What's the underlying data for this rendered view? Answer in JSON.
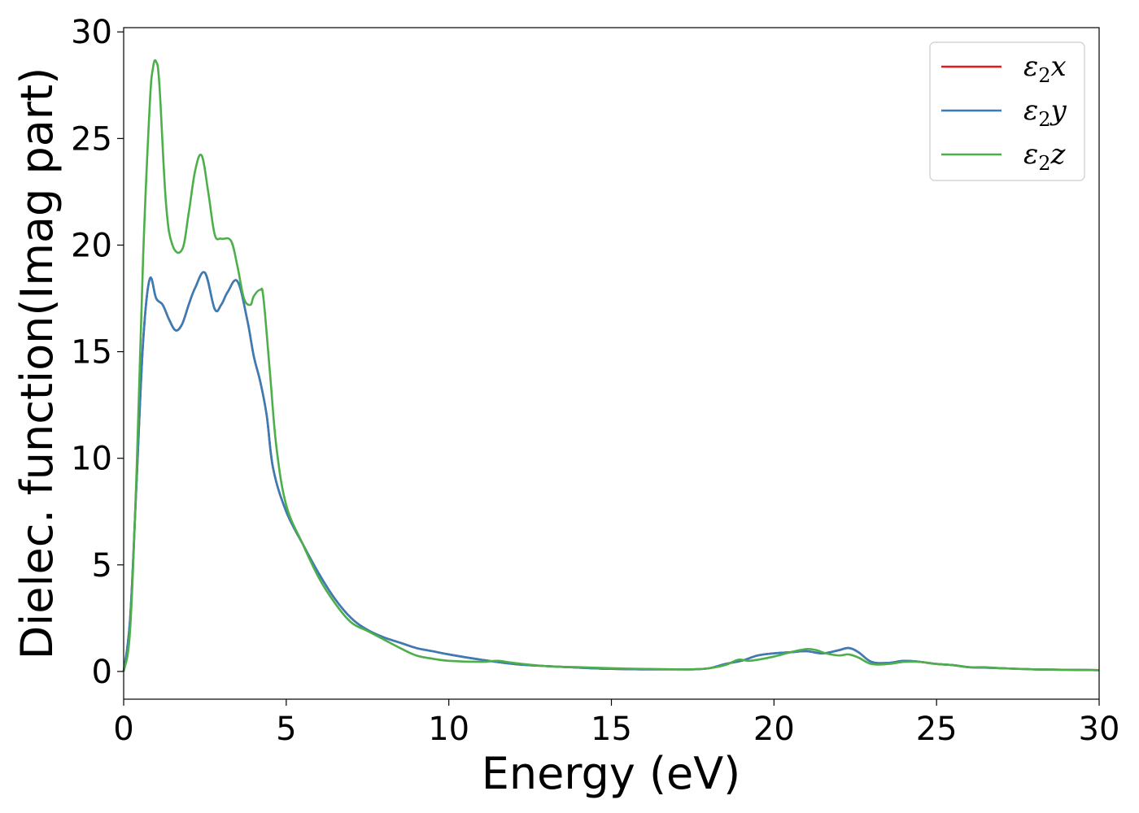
{
  "chart_data": {
    "type": "line",
    "xlabel": "Energy (eV)",
    "ylabel": "Dielec. function(Imag part)",
    "xlim": [
      0,
      30
    ],
    "ylim": [
      -1.3,
      30.2
    ],
    "xticks": [
      0,
      5,
      10,
      15,
      20,
      25,
      30
    ],
    "yticks": [
      0,
      5,
      10,
      15,
      20,
      25,
      30
    ],
    "grid": false,
    "legend_position": "top-right",
    "series": [
      {
        "name": "ε₂x",
        "label_base": "ε",
        "label_sub": "2",
        "label_var": "x",
        "color": "#e41a1c",
        "x": [
          0,
          0.2,
          0.4,
          0.6,
          0.8,
          1.0,
          1.2,
          1.4,
          1.6,
          1.8,
          2.0,
          2.2,
          2.5,
          2.8,
          3.0,
          3.2,
          3.5,
          3.8,
          4.0,
          4.2,
          4.4,
          4.6,
          5.0,
          5.5,
          6.0,
          6.5,
          7.0,
          7.5,
          8.0,
          8.5,
          9.0,
          9.5,
          10.0,
          11.0,
          12.0,
          13.0,
          14.0,
          15.0,
          16.0,
          17.0,
          17.5,
          18.0,
          18.5,
          19.0,
          19.5,
          20.0,
          20.5,
          21.0,
          21.5,
          22.0,
          22.3,
          22.6,
          23.0,
          23.5,
          24.0,
          24.5,
          25.0,
          25.5,
          26.0,
          26.5,
          27.0,
          28.0,
          29.0,
          30.0
        ],
        "values": [
          0,
          2.5,
          9,
          15.5,
          18.4,
          17.5,
          17.2,
          16.5,
          16.0,
          16.3,
          17.2,
          18.0,
          18.7,
          17.0,
          17.2,
          17.8,
          18.3,
          16.5,
          14.8,
          13.6,
          12.0,
          9.5,
          7.5,
          6.0,
          4.6,
          3.4,
          2.5,
          1.95,
          1.6,
          1.35,
          1.1,
          0.95,
          0.8,
          0.55,
          0.35,
          0.25,
          0.18,
          0.12,
          0.1,
          0.1,
          0.1,
          0.15,
          0.35,
          0.5,
          0.75,
          0.85,
          0.9,
          0.95,
          0.85,
          1.0,
          1.1,
          0.9,
          0.45,
          0.4,
          0.5,
          0.45,
          0.35,
          0.3,
          0.2,
          0.18,
          0.15,
          0.1,
          0.08,
          0.06
        ]
      },
      {
        "name": "ε₂y",
        "label_base": "ε",
        "label_sub": "2",
        "label_var": "y",
        "color": "#377eb8",
        "x": [
          0,
          0.2,
          0.4,
          0.6,
          0.8,
          1.0,
          1.2,
          1.4,
          1.6,
          1.8,
          2.0,
          2.2,
          2.5,
          2.8,
          3.0,
          3.2,
          3.5,
          3.8,
          4.0,
          4.2,
          4.4,
          4.6,
          5.0,
          5.5,
          6.0,
          6.5,
          7.0,
          7.5,
          8.0,
          8.5,
          9.0,
          9.5,
          10.0,
          11.0,
          12.0,
          13.0,
          14.0,
          15.0,
          16.0,
          17.0,
          17.5,
          18.0,
          18.5,
          19.0,
          19.5,
          20.0,
          20.5,
          21.0,
          21.5,
          22.0,
          22.3,
          22.6,
          23.0,
          23.5,
          24.0,
          24.5,
          25.0,
          25.5,
          26.0,
          26.5,
          27.0,
          28.0,
          29.0,
          30.0
        ],
        "values": [
          0,
          2.5,
          9,
          15.5,
          18.4,
          17.5,
          17.2,
          16.5,
          16.0,
          16.3,
          17.2,
          18.0,
          18.7,
          17.0,
          17.2,
          17.8,
          18.3,
          16.5,
          14.8,
          13.6,
          12.0,
          9.5,
          7.5,
          6.0,
          4.6,
          3.4,
          2.5,
          1.95,
          1.6,
          1.35,
          1.1,
          0.95,
          0.8,
          0.55,
          0.35,
          0.25,
          0.18,
          0.12,
          0.1,
          0.1,
          0.1,
          0.15,
          0.35,
          0.5,
          0.75,
          0.85,
          0.9,
          0.95,
          0.85,
          1.0,
          1.1,
          0.9,
          0.45,
          0.4,
          0.5,
          0.45,
          0.35,
          0.3,
          0.2,
          0.18,
          0.15,
          0.1,
          0.08,
          0.06
        ]
      },
      {
        "name": "ε₂z",
        "label_base": "ε",
        "label_sub": "2",
        "label_var": "z",
        "color": "#4daf4a",
        "x": [
          0,
          0.2,
          0.4,
          0.6,
          0.8,
          0.9,
          1.0,
          1.1,
          1.3,
          1.5,
          1.8,
          2.0,
          2.2,
          2.4,
          2.6,
          2.8,
          3.0,
          3.3,
          3.5,
          3.7,
          3.9,
          4.0,
          4.2,
          4.3,
          4.5,
          4.7,
          5.0,
          5.5,
          6.0,
          6.5,
          7.0,
          7.5,
          8.0,
          8.5,
          9.0,
          9.5,
          10.0,
          11.0,
          11.5,
          12.0,
          13.0,
          14.0,
          15.0,
          16.0,
          17.0,
          17.5,
          18.0,
          18.5,
          18.9,
          19.2,
          19.5,
          20.0,
          20.5,
          21.0,
          21.3,
          21.6,
          22.0,
          22.3,
          22.6,
          23.0,
          23.5,
          24.0,
          24.5,
          25.0,
          25.5,
          26.0,
          26.5,
          27.0,
          28.0,
          29.0,
          30.0
        ],
        "values": [
          0,
          2.0,
          9.5,
          19.5,
          26.5,
          28.3,
          28.6,
          27.5,
          22.0,
          20.0,
          19.8,
          21.5,
          23.5,
          24.2,
          22.5,
          20.5,
          20.3,
          20.2,
          19.0,
          17.5,
          17.2,
          17.6,
          17.9,
          17.5,
          14.0,
          10.5,
          7.8,
          6.0,
          4.4,
          3.2,
          2.3,
          1.9,
          1.5,
          1.1,
          0.75,
          0.6,
          0.5,
          0.45,
          0.5,
          0.4,
          0.25,
          0.2,
          0.15,
          0.12,
          0.1,
          0.1,
          0.15,
          0.3,
          0.55,
          0.5,
          0.55,
          0.7,
          0.9,
          1.05,
          1.0,
          0.85,
          0.75,
          0.8,
          0.65,
          0.35,
          0.35,
          0.45,
          0.45,
          0.35,
          0.3,
          0.2,
          0.2,
          0.15,
          0.1,
          0.08,
          0.06
        ]
      }
    ]
  }
}
